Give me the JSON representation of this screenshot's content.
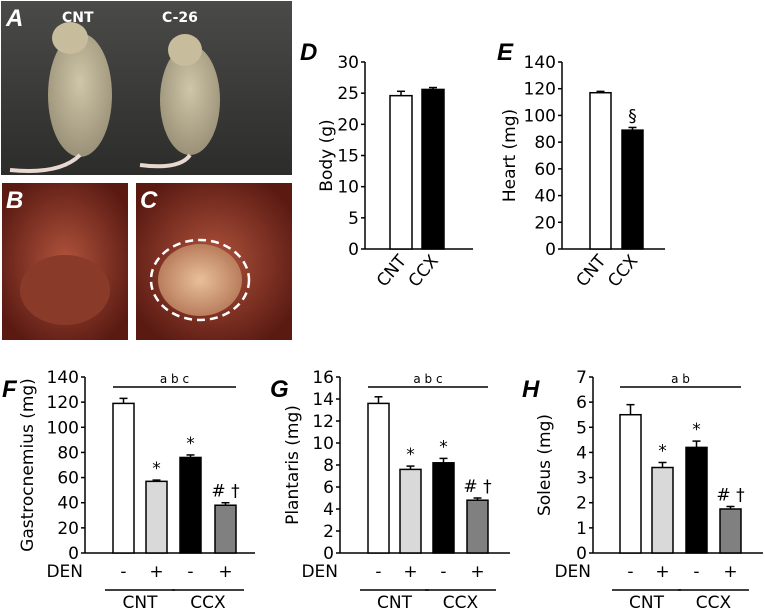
{
  "photos": {
    "A": {
      "panel_label": "A",
      "labels": [
        "CNT",
        "C-26"
      ]
    },
    "B": {
      "panel_label": "B"
    },
    "C": {
      "panel_label": "C"
    }
  },
  "colors": {
    "CNT_minus": "#ffffff",
    "CNT_plus": "#d9d9d9",
    "CCX_minus": "#000000",
    "CCX_plus": "#808080"
  },
  "chart_data": [
    {
      "panel_label": "D",
      "type": "bar",
      "categories": [
        "CNT",
        "CCX"
      ],
      "values": [
        24.6,
        25.6
      ],
      "errors": [
        0.7,
        0.3
      ],
      "ylabel": "Body (g)",
      "ylim": [
        0,
        30
      ],
      "yticks": [
        0,
        5,
        10,
        15,
        20,
        25,
        30
      ],
      "colors": [
        "#ffffff",
        "#000000"
      ],
      "annotations": [
        "",
        ""
      ]
    },
    {
      "panel_label": "E",
      "type": "bar",
      "categories": [
        "CNT",
        "CCX"
      ],
      "values": [
        117,
        89
      ],
      "errors": [
        1,
        2
      ],
      "ylabel": "Heart (mg)",
      "ylim": [
        0,
        140
      ],
      "yticks": [
        0,
        20,
        40,
        60,
        80,
        100,
        120,
        140
      ],
      "colors": [
        "#ffffff",
        "#000000"
      ],
      "annotations": [
        "",
        "§"
      ]
    },
    {
      "panel_label": "F",
      "type": "bar",
      "den_label": "DEN",
      "den": [
        "-",
        "+",
        "-",
        "+"
      ],
      "groups": [
        "CNT",
        "CCX"
      ],
      "values": [
        119,
        57,
        76,
        38
      ],
      "errors": [
        4,
        1,
        2,
        2
      ],
      "ylabel": "Gastrocnemius (mg)",
      "ylim": [
        0,
        140
      ],
      "yticks": [
        0,
        20,
        40,
        60,
        80,
        100,
        120,
        140
      ],
      "colors": [
        "#ffffff",
        "#d9d9d9",
        "#000000",
        "#808080"
      ],
      "annotations": [
        "",
        "*",
        "*",
        "# †"
      ],
      "bracket": "a b c"
    },
    {
      "panel_label": "G",
      "type": "bar",
      "den_label": "DEN",
      "den": [
        "-",
        "+",
        "-",
        "+"
      ],
      "groups": [
        "CNT",
        "CCX"
      ],
      "values": [
        13.6,
        7.6,
        8.2,
        4.8
      ],
      "errors": [
        0.6,
        0.3,
        0.4,
        0.2
      ],
      "ylabel": "Plantaris (mg)",
      "ylim": [
        0,
        16
      ],
      "yticks": [
        0,
        2,
        4,
        6,
        8,
        10,
        12,
        14,
        16
      ],
      "colors": [
        "#ffffff",
        "#d9d9d9",
        "#000000",
        "#808080"
      ],
      "annotations": [
        "",
        "*",
        "*",
        "# †"
      ],
      "bracket": "a b c"
    },
    {
      "panel_label": "H",
      "type": "bar",
      "den_label": "DEN",
      "den": [
        "-",
        "+",
        "-",
        "+"
      ],
      "groups": [
        "CNT",
        "CCX"
      ],
      "values": [
        5.5,
        3.4,
        4.2,
        1.75
      ],
      "errors": [
        0.4,
        0.2,
        0.25,
        0.1
      ],
      "ylabel": "Soleus (mg)",
      "ylim": [
        0,
        7
      ],
      "yticks": [
        0,
        1,
        2,
        3,
        4,
        5,
        6,
        7
      ],
      "colors": [
        "#ffffff",
        "#d9d9d9",
        "#000000",
        "#808080"
      ],
      "annotations": [
        "",
        "*",
        "*",
        "# †"
      ],
      "bracket": "a b"
    }
  ]
}
